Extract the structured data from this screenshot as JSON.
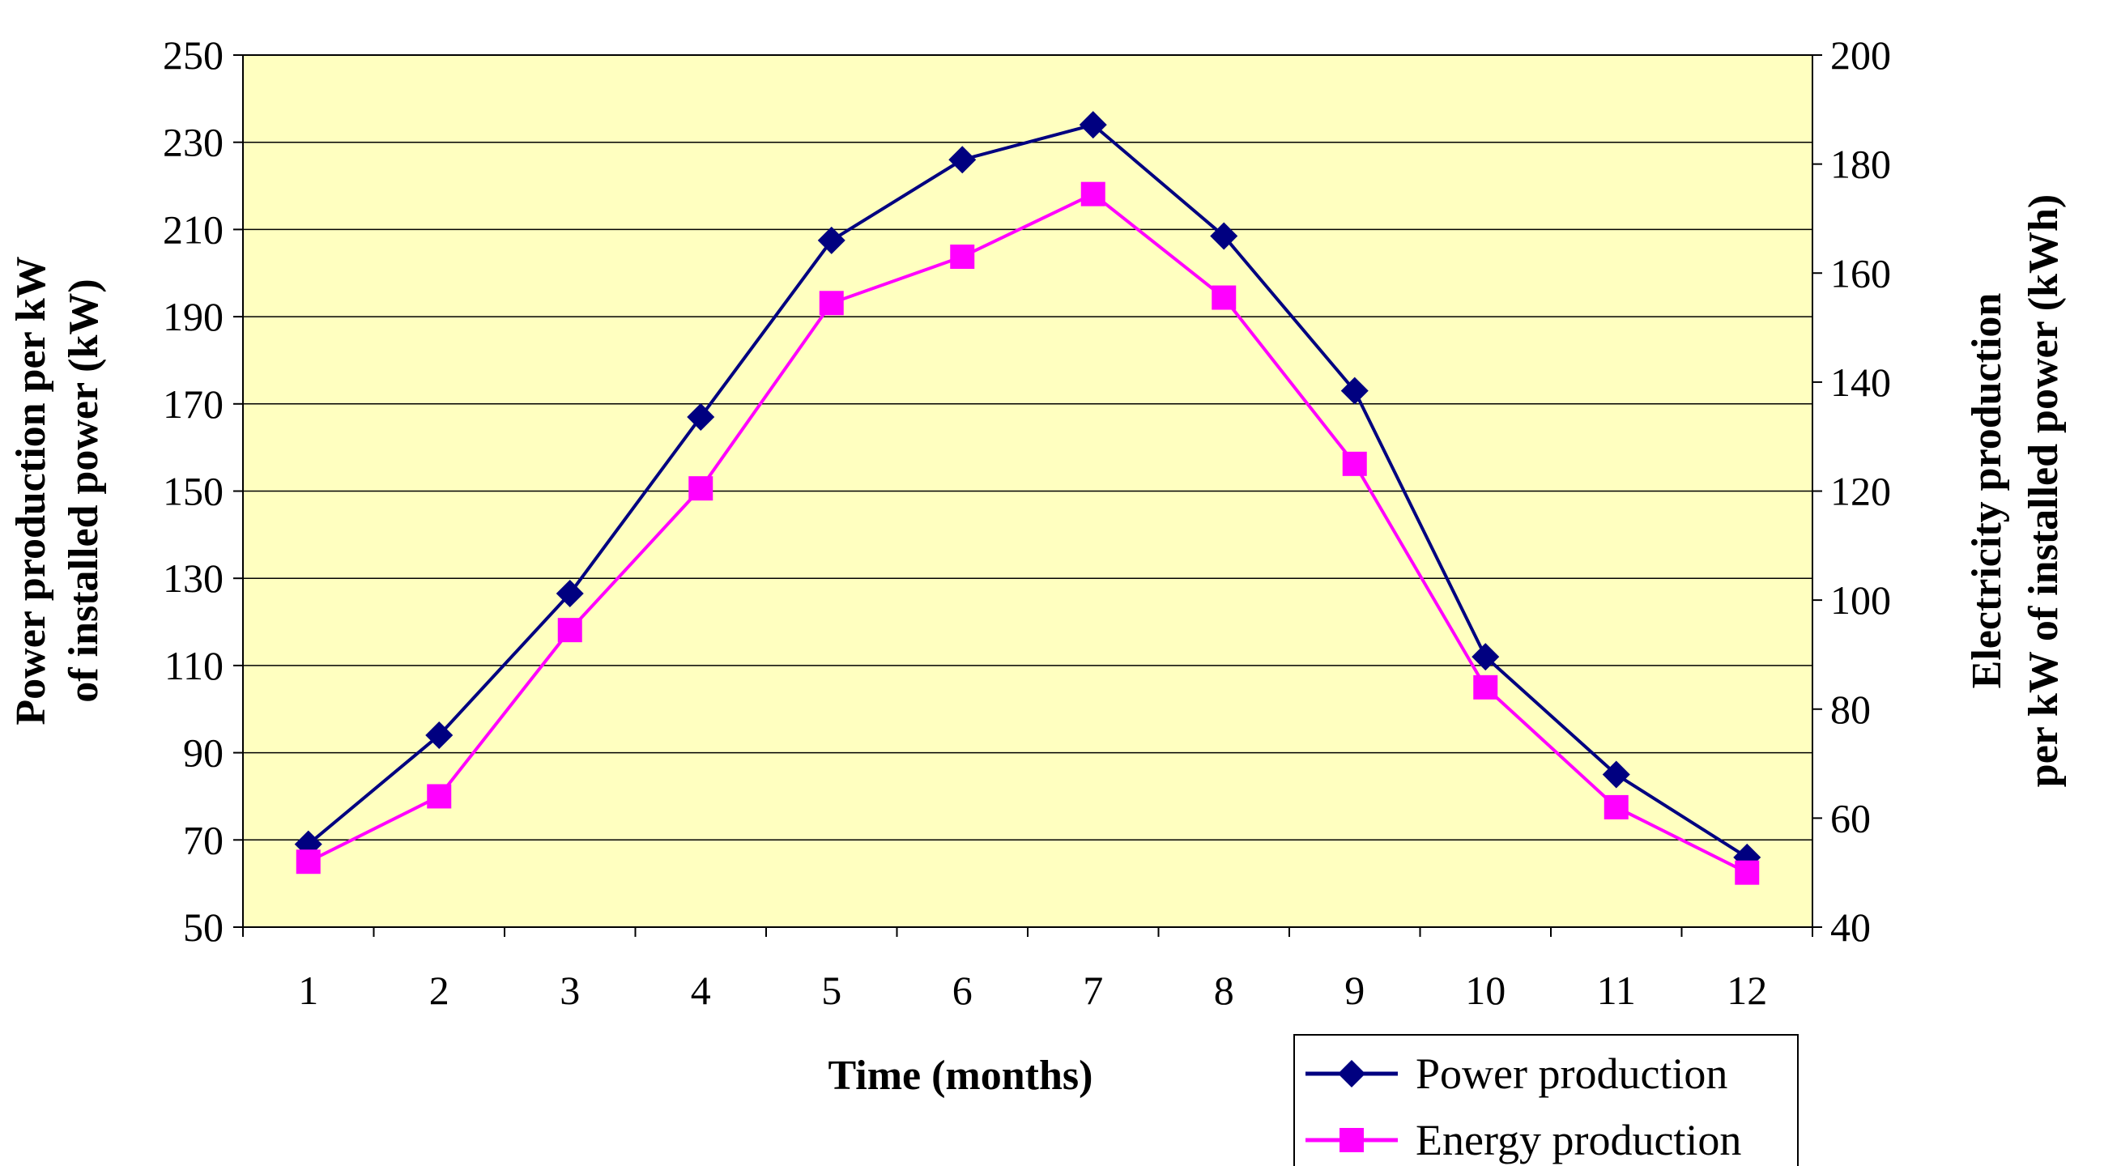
{
  "chart_data": {
    "type": "line",
    "x": [
      1,
      2,
      3,
      4,
      5,
      6,
      7,
      8,
      9,
      10,
      11,
      12
    ],
    "x_tick_labels": [
      "1",
      "2",
      "3",
      "4",
      "5",
      "6",
      "7",
      "8",
      "9",
      "10",
      "11",
      "12"
    ],
    "xlabel": "Time (months)",
    "ylabel_left_line1": "Power production per kW",
    "ylabel_left_line2": "of installed power (kW)",
    "ylabel_right_line1": "Electricity production",
    "ylabel_right_line2": "per kW of installed power (kWh)",
    "ylim_left": [
      50,
      250
    ],
    "ylim_right": [
      40,
      200
    ],
    "y_ticks_left": [
      "250",
      "230",
      "210",
      "190",
      "170",
      "150",
      "130",
      "110",
      "90",
      "70",
      "50"
    ],
    "y_ticks_right": [
      "200",
      "180",
      "160",
      "140",
      "120",
      "100",
      "80",
      "60",
      "40"
    ],
    "grid": true,
    "plot_background": "#FFFFC0",
    "legend_position": "bottom-right",
    "series": [
      {
        "name": "Power production",
        "axis": "left",
        "color": "#000080",
        "marker": "diamond",
        "values": [
          69,
          94,
          126.5,
          167,
          207.5,
          226,
          234,
          208.5,
          173,
          112,
          85,
          66
        ]
      },
      {
        "name": "Energy production",
        "axis": "right",
        "color": "#FF00FF",
        "marker": "square",
        "values": [
          52,
          64,
          94.5,
          120.5,
          154.5,
          163,
          174.5,
          155.5,
          125,
          84,
          62,
          50
        ]
      }
    ]
  }
}
